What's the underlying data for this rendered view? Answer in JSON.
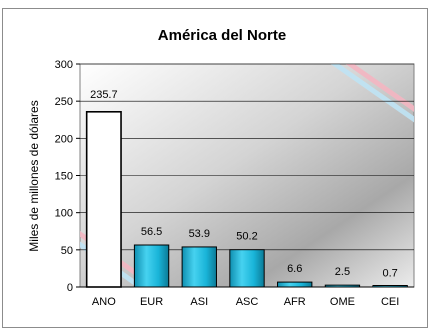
{
  "chart_data": {
    "type": "bar",
    "title": "América del Norte",
    "ylabel": "Miles de millones de dólares",
    "xlabel": "",
    "categories": [
      "ANO",
      "EUR",
      "ASI",
      "ASC",
      "AFR",
      "OME",
      "CEI"
    ],
    "values": [
      235.7,
      56.5,
      53.9,
      50.2,
      6.6,
      2.5,
      0.7
    ],
    "value_labels": [
      "235.7",
      "56.5",
      "53.9",
      "50.2",
      "6.6",
      "2.5",
      "0.7"
    ],
    "yticks": [
      "0",
      "50",
      "100",
      "150",
      "200",
      "250",
      "300"
    ],
    "ylim": [
      0,
      300
    ],
    "grid": true,
    "colors": {
      "highlight_bar": "#ffffff",
      "bar": "#19b4d8",
      "bar_edge": "#000000",
      "plot_background": "#c8c8c8"
    }
  }
}
